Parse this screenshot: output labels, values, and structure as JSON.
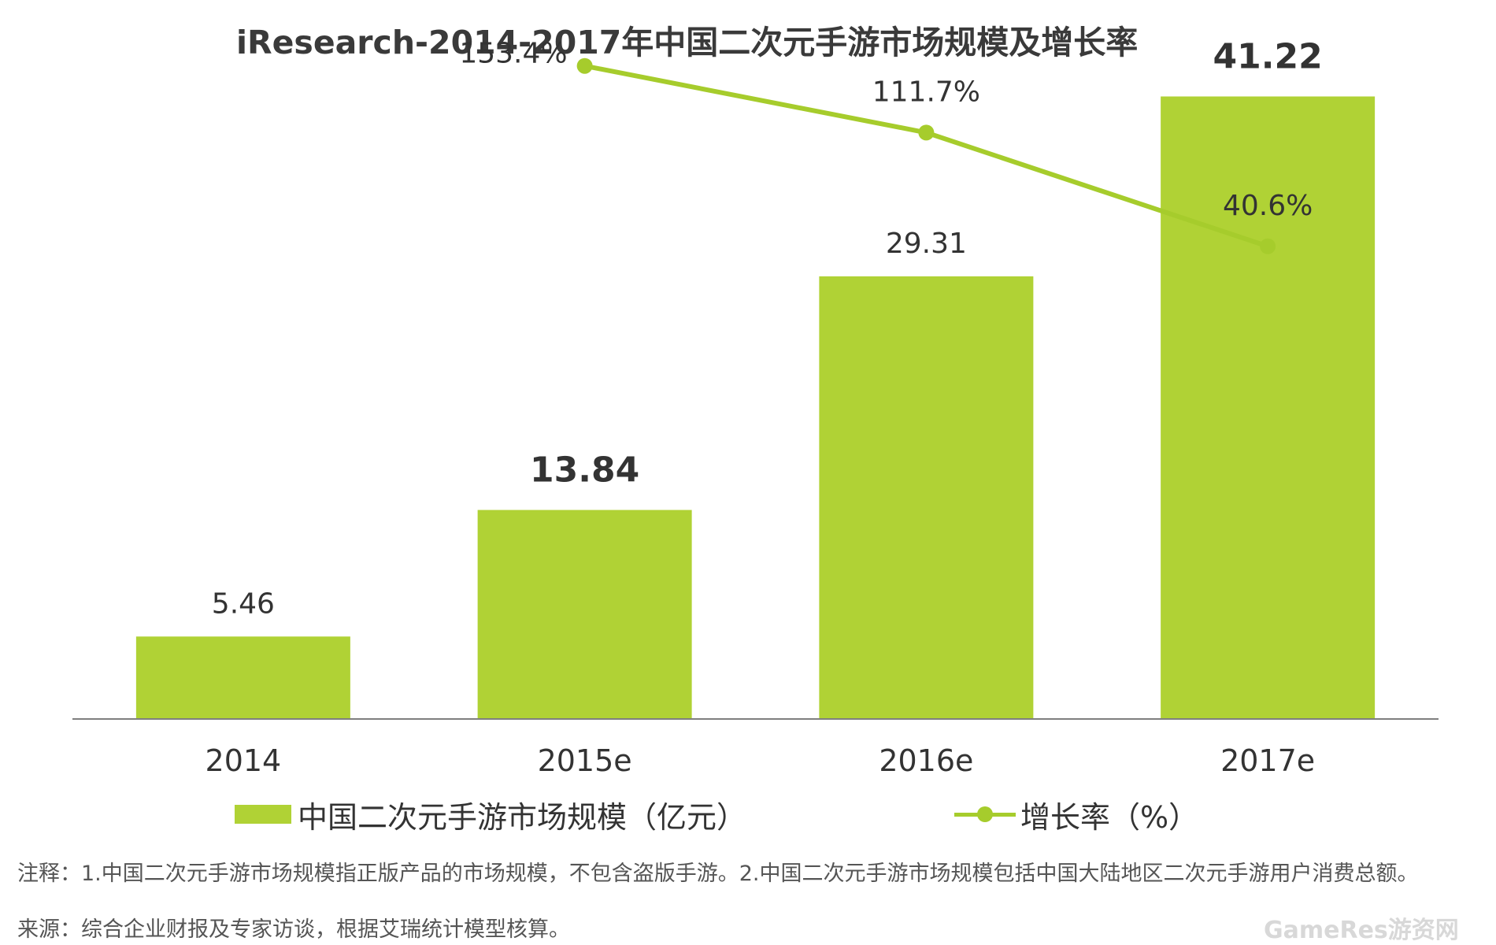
{
  "chart_data": {
    "type": "bar",
    "title": "iResearch-2014-2017年中国二次元手游市场规模及增长率",
    "categories": [
      "2014",
      "2015e",
      "2016e",
      "2017e"
    ],
    "series": [
      {
        "name": "中国二次元手游市场规模（亿元）",
        "type": "bar",
        "values": [
          5.46,
          13.84,
          29.31,
          41.22
        ],
        "labels": [
          "5.46",
          "13.84",
          "29.31",
          "41.22"
        ],
        "bold_labels": [
          false,
          true,
          false,
          true
        ]
      },
      {
        "name": "增长率（%）",
        "type": "line",
        "values": [
          null,
          153.4,
          111.7,
          40.6
        ],
        "labels": [
          "",
          "153.4%",
          "111.7%",
          "40.6%"
        ]
      }
    ],
    "ylim": [
      0,
      45
    ],
    "y2lim": [
      -255,
      170
    ],
    "grid": false,
    "legend": "bottom"
  },
  "colors": {
    "bar": "#b0d235",
    "line": "#a6cc2c",
    "axis": "#7f7f7f",
    "text": "#333333"
  },
  "notes": {
    "note": "注释：1.中国二次元手游市场规模指正版产品的市场规模，不包含盗版手游。2.中国二次元手游市场规模包括中国大陆地区二次元手游用户消费总额。",
    "source": "来源：综合企业财报及专家访谈，根据艾瑞统计模型核算。"
  },
  "watermark": "GameRes游资网"
}
